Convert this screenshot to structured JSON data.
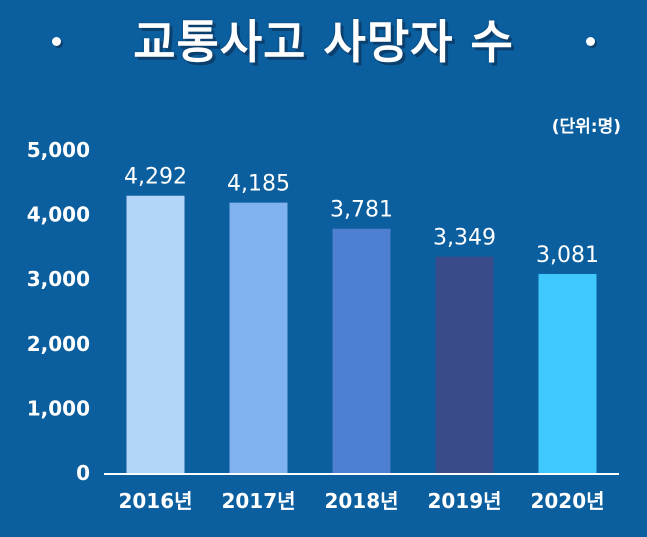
{
  "chart_data": {
    "type": "bar",
    "title": "교통사고 사망자 수",
    "unit_label": "(단위:명)",
    "categories": [
      "2016년",
      "2017년",
      "2018년",
      "2019년",
      "2020년"
    ],
    "values": [
      4292,
      4185,
      3781,
      3349,
      3081
    ],
    "value_labels": [
      "4,292",
      "4,185",
      "3,781",
      "3,349",
      "3,081"
    ],
    "bar_colors": [
      "#b3d5f7",
      "#7fb2ef",
      "#4f7fd0",
      "#3a4b8c",
      "#3fc8fb"
    ],
    "ylim": [
      0,
      5000
    ],
    "yticks": [
      0,
      1000,
      2000,
      3000,
      4000,
      5000
    ],
    "ytick_labels": [
      "0",
      "1,000",
      "2,000",
      "3,000",
      "4,000",
      "5,000"
    ],
    "grid": false,
    "legend": "none"
  }
}
